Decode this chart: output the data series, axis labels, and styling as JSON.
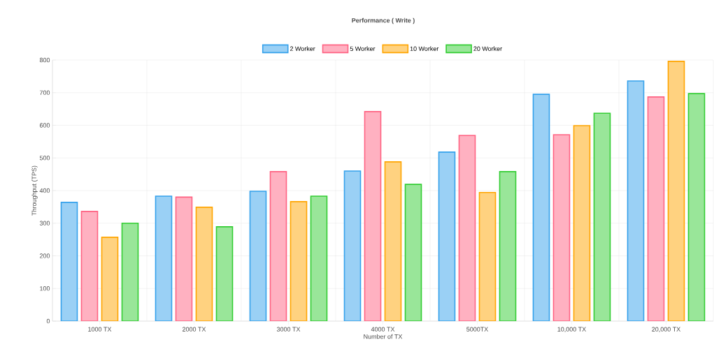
{
  "chart_data": {
    "type": "bar",
    "title": "Performance ( Write )",
    "xlabel": "Number of TX",
    "ylabel": "Throughput (TPS)",
    "categories": [
      "1000 TX",
      "2000 TX",
      "3000 TX",
      "4000 TX",
      "5000TX",
      "10,000 TX",
      "20,000 TX"
    ],
    "series": [
      {
        "name": "2 Worker",
        "color": "#9ad0f5",
        "values": [
          364,
          383,
          398,
          460,
          518,
          695,
          736
        ]
      },
      {
        "name": "5 Worker",
        "color": "#ffb1c1",
        "values": [
          336,
          380,
          458,
          642,
          569,
          571,
          687
        ]
      },
      {
        "name": "10 Worker",
        "color": "#ffd280",
        "values": [
          257,
          349,
          366,
          488,
          394,
          599,
          796
        ]
      },
      {
        "name": "20 Worker",
        "color": "#99e699",
        "values": [
          300,
          289,
          383,
          419,
          458,
          637,
          697
        ]
      }
    ],
    "ylim": [
      0,
      800
    ],
    "yticks": [
      0,
      100,
      200,
      300,
      400,
      500,
      600,
      700,
      800
    ],
    "grid": true,
    "legend": "top"
  }
}
